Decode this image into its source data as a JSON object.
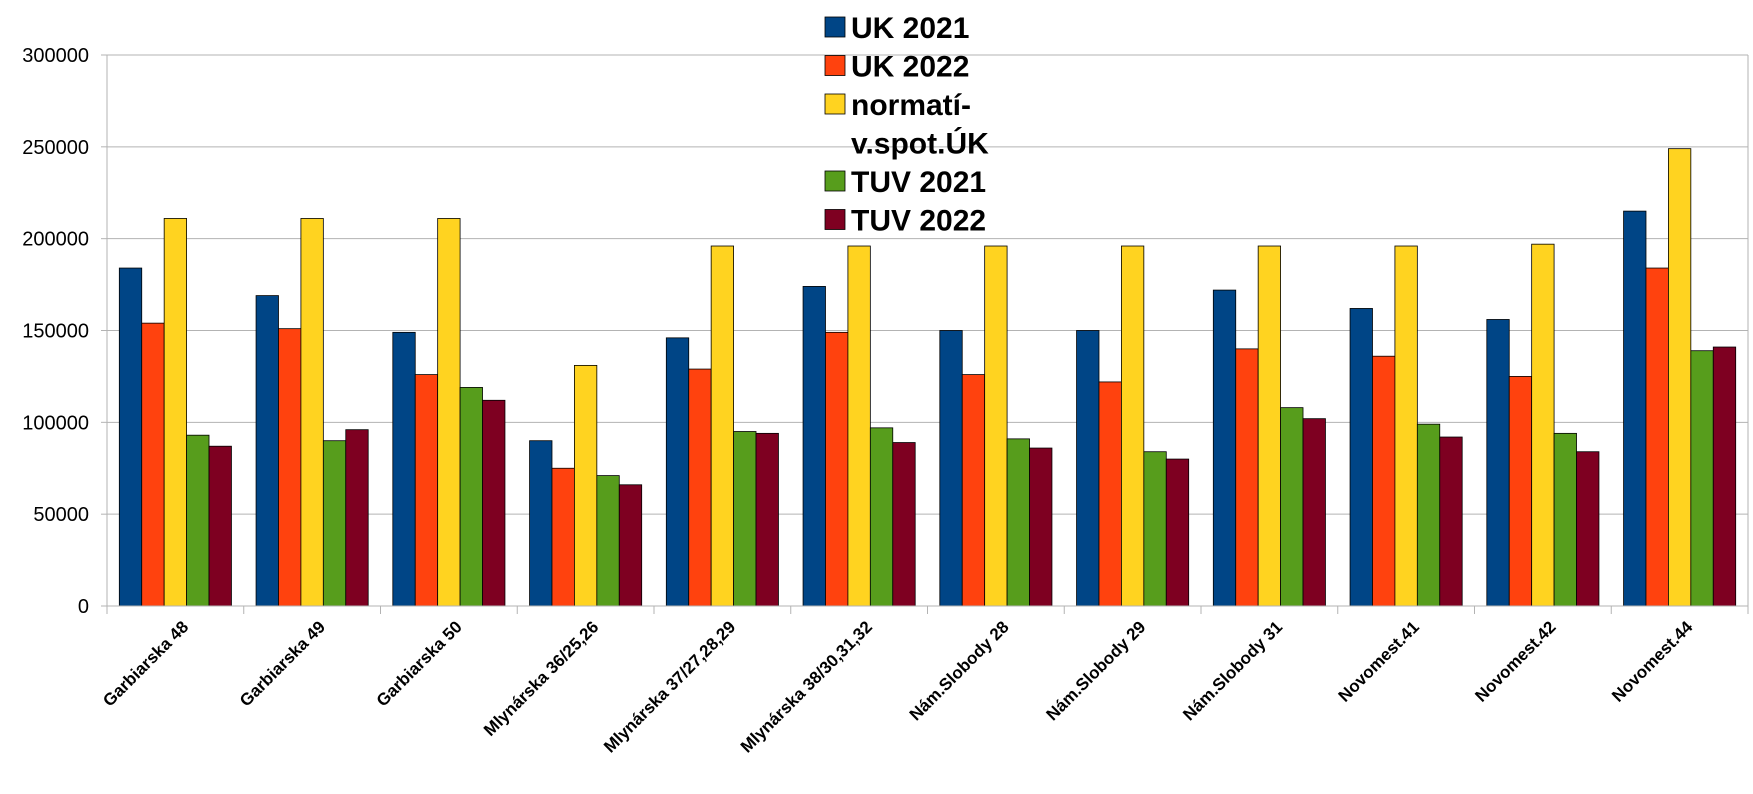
{
  "chart_data": {
    "type": "bar",
    "categories": [
      "Garbiarska 48",
      "Garbiarska 49",
      "Garbiarska 50",
      "Mlynárska 36/25,26",
      "Mlynárska 37/27,28,29",
      "Mlynárska 38/30,31,32",
      "Nám.Slobody 28",
      "Nám.Slobody 29",
      "Nám.Slobody 31",
      "Novomest.41",
      "Novomest.42",
      "Novomest.44"
    ],
    "series": [
      {
        "name": "UK 2021",
        "color": "#004586",
        "values": [
          184000,
          169000,
          149000,
          90000,
          146000,
          174000,
          150000,
          150000,
          172000,
          162000,
          156000,
          215000
        ]
      },
      {
        "name": "UK 2022",
        "color": "#ff420e",
        "values": [
          154000,
          151000,
          126000,
          75000,
          129000,
          149000,
          126000,
          122000,
          140000,
          136000,
          125000,
          184000
        ]
      },
      {
        "name": "normatív.spot.ÚK",
        "legend_lines": [
          "normatí-",
          "v.spot.ÚK"
        ],
        "color": "#ffd320",
        "values": [
          211000,
          211000,
          211000,
          131000,
          196000,
          196000,
          196000,
          196000,
          196000,
          196000,
          197000,
          249000
        ]
      },
      {
        "name": "TUV 2021",
        "color": "#579d1c",
        "values": [
          93000,
          90000,
          119000,
          71000,
          95000,
          97000,
          91000,
          84000,
          108000,
          99000,
          94000,
          139000
        ]
      },
      {
        "name": "TUV 2022",
        "color": "#7e0021",
        "values": [
          87000,
          96000,
          112000,
          66000,
          94000,
          89000,
          86000,
          80000,
          102000,
          92000,
          84000,
          141000
        ]
      }
    ],
    "ylim": [
      0,
      300000
    ],
    "yticks": [
      "0",
      "50000",
      "100000",
      "150000",
      "200000",
      "250000",
      "300000"
    ],
    "grid": true,
    "legend_position": "top-center"
  }
}
